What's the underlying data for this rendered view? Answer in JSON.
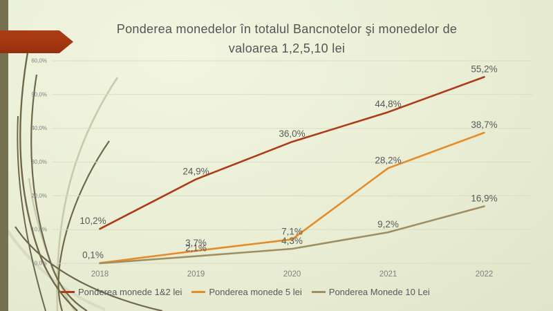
{
  "header": {
    "title_line1": "Ponderea monedelor în totalul Bancnotelor şi monedelor de",
    "title_line2": "valoarea 1,2,5,10 lei"
  },
  "theme": {
    "background_light": "#F2F5E0",
    "background_dark": "#E0E5C9",
    "side_bar_color": "#75704F",
    "accent_arrow_color": "#A43711",
    "title_color": "#545454",
    "data_label_color": "#595959",
    "axis_label_color": "#7F7F7F",
    "gridline_color": "#D9DCC6"
  },
  "chart_data": {
    "type": "line",
    "title": "Ponderea monedelor în totalul Bancnotelor şi monedelor de valoarea 1,2,5,10 lei",
    "categories": [
      "2018",
      "2019",
      "2020",
      "2021",
      "2022"
    ],
    "series": [
      {
        "name": "Ponderea monede 1&2 lei",
        "color": "#AE3A18",
        "values": [
          10.2,
          24.9,
          36.0,
          44.8,
          55.2
        ],
        "labels": [
          "10,2%",
          "24,9%",
          "36,0%",
          "44,8%",
          "55,2%"
        ]
      },
      {
        "name": "Ponderea monede 5 lei",
        "color": "#E78B28",
        "values": [
          0.1,
          3.7,
          7.1,
          28.2,
          38.7
        ],
        "labels": [
          "0,1%",
          "3,7%",
          "7,1%",
          "28,2%",
          "38,7%"
        ]
      },
      {
        "name": "Ponderea Monede 10 Lei",
        "color": "#A08E60",
        "values": [
          0.0,
          2.1,
          4.3,
          9.2,
          16.9
        ],
        "labels": [
          "",
          "2,1%",
          "4,3%",
          "9,2%",
          "16,9%"
        ]
      }
    ],
    "y_ticks": [
      "0,0%",
      "10,0%",
      "20,0%",
      "30,0%",
      "40,0%",
      "50,0%",
      "60,0%"
    ],
    "ylim": [
      0,
      60
    ],
    "grid": true,
    "legend_position": "bottom"
  }
}
